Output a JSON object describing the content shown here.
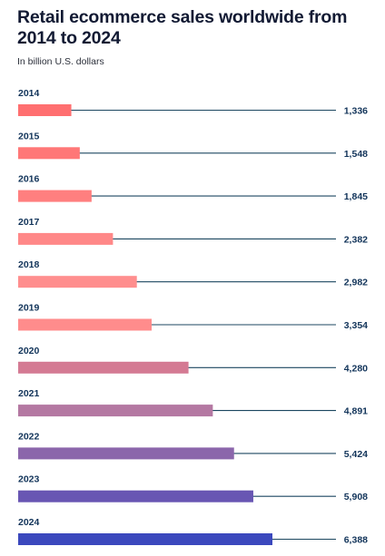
{
  "chart_data": {
    "type": "bar",
    "orientation": "horizontal",
    "title": "Retail ecommerce sales worldwide from 2014 to 2024",
    "subtitle": "In billion U.S. dollars",
    "categories": [
      "2014",
      "2015",
      "2016",
      "2017",
      "2018",
      "2019",
      "2020",
      "2021",
      "2022",
      "2023",
      "2024"
    ],
    "values": [
      1336,
      1548,
      1845,
      2382,
      2982,
      3354,
      4280,
      4891,
      5424,
      5908,
      6388
    ],
    "value_labels": [
      "1,336",
      "1,548",
      "1,845",
      "2,382",
      "2,982",
      "3,354",
      "4,280",
      "4,891",
      "5,424",
      "5,908",
      "6,388"
    ],
    "colors": [
      "#ff6f70",
      "#ff7777",
      "#ff7f7f",
      "#ff8888",
      "#ff8e8e",
      "#ff8c8c",
      "#d47a93",
      "#b478a2",
      "#8b66ab",
      "#6856b3",
      "#3b48bd"
    ],
    "line_color": "#1c4760",
    "legend": "none",
    "grid": false
  }
}
